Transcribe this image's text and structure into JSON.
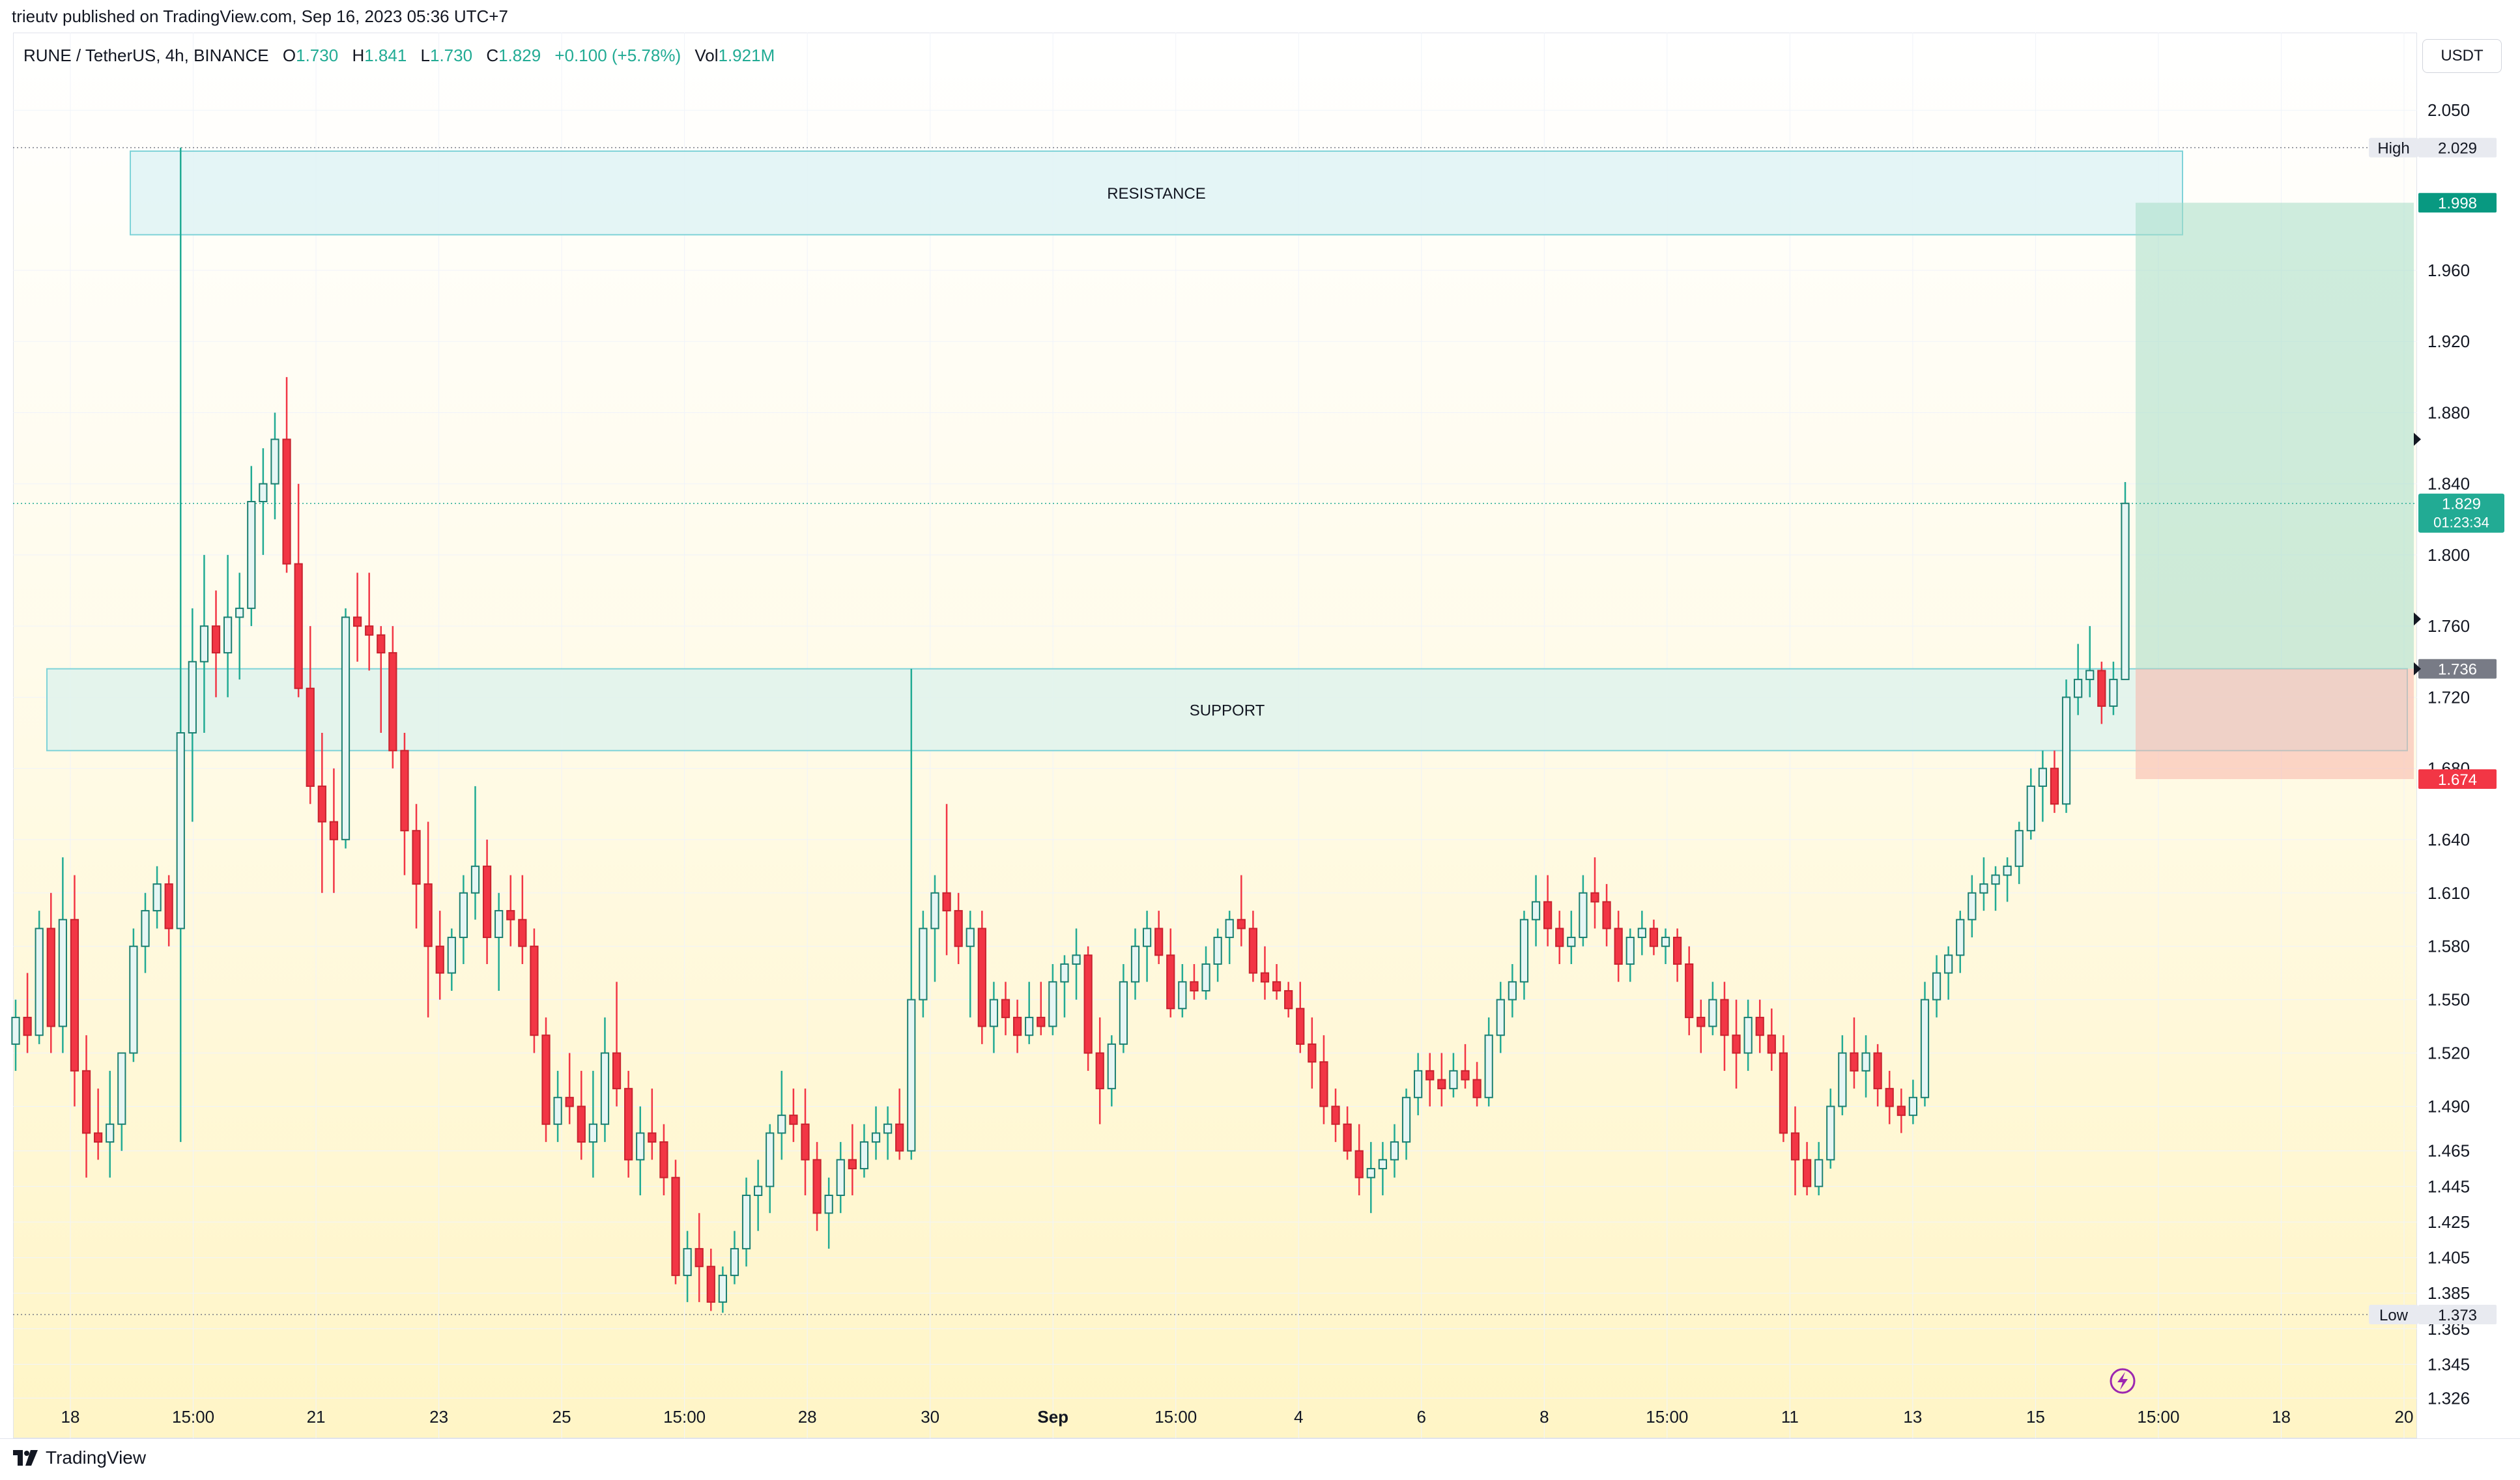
{
  "publisher": "trieutv published on TradingView.com, Sep 16, 2023 05:36 UTC+7",
  "legend": {
    "symbol": "RUNE / TetherUS, 4h, BINANCE",
    "o_label": "O",
    "o": "1.730",
    "h_label": "H",
    "h": "1.841",
    "l_label": "L",
    "l": "1.730",
    "c_label": "C",
    "c": "1.829",
    "change": "+0.100 (+5.78%)",
    "vol_label": "Vol",
    "vol": "1.921M"
  },
  "currency": "USDT",
  "brand": "TradingView",
  "colors": {
    "up": "#22ab94",
    "down": "#f23645",
    "up_fill": "#e6f6f4",
    "grid": "#f0f3fa"
  },
  "chart_data": {
    "type": "candlestick",
    "title": "RUNE / TetherUS, 4h, BINANCE",
    "ylabel": "USDT",
    "ylim": [
      1.31,
      2.09
    ],
    "y_ticks": [
      "2.050",
      "1.960",
      "1.920",
      "1.880",
      "1.840",
      "1.800",
      "1.760",
      "1.720",
      "1.680",
      "1.640",
      "1.610",
      "1.580",
      "1.550",
      "1.520",
      "1.490",
      "1.465",
      "1.445",
      "1.425",
      "1.405",
      "1.385",
      "1.365",
      "1.345",
      "1.326"
    ],
    "x_ticks": [
      "18",
      "15:00",
      "21",
      "23",
      "25",
      "15:00",
      "28",
      "30",
      "Sep",
      "15:00",
      "4",
      "6",
      "8",
      "15:00",
      "11",
      "13",
      "15",
      "15:00",
      "18",
      "20"
    ],
    "zones": [
      {
        "label": "RESISTANCE",
        "from": 1.98,
        "to": 2.027
      },
      {
        "label": "SUPPORT",
        "from": 1.69,
        "to": 1.736
      }
    ],
    "markers": [
      {
        "label": "High",
        "value": 2.029
      },
      {
        "label": "Low",
        "value": 1.373
      }
    ],
    "position": {
      "target": 1.998,
      "entry": 1.736,
      "stop": 1.674
    },
    "last_price": "1.829",
    "countdown": "01:23:34",
    "candles": [
      [
        1.525,
        1.55,
        1.51,
        1.54
      ],
      [
        1.54,
        1.565,
        1.52,
        1.53
      ],
      [
        1.53,
        1.6,
        1.525,
        1.59
      ],
      [
        1.59,
        1.61,
        1.52,
        1.535
      ],
      [
        1.535,
        1.63,
        1.52,
        1.595
      ],
      [
        1.595,
        1.62,
        1.49,
        1.51
      ],
      [
        1.51,
        1.53,
        1.45,
        1.475
      ],
      [
        1.475,
        1.5,
        1.46,
        1.47
      ],
      [
        1.47,
        1.51,
        1.45,
        1.48
      ],
      [
        1.48,
        1.52,
        1.465,
        1.52
      ],
      [
        1.52,
        1.59,
        1.515,
        1.58
      ],
      [
        1.58,
        1.61,
        1.565,
        1.6
      ],
      [
        1.6,
        1.625,
        1.59,
        1.615
      ],
      [
        1.615,
        1.62,
        1.58,
        1.59
      ],
      [
        1.59,
        2.029,
        1.47,
        1.7
      ],
      [
        1.7,
        1.77,
        1.65,
        1.74
      ],
      [
        1.74,
        1.8,
        1.7,
        1.76
      ],
      [
        1.76,
        1.78,
        1.72,
        1.745
      ],
      [
        1.745,
        1.8,
        1.72,
        1.765
      ],
      [
        1.765,
        1.79,
        1.73,
        1.77
      ],
      [
        1.77,
        1.85,
        1.76,
        1.83
      ],
      [
        1.83,
        1.86,
        1.8,
        1.84
      ],
      [
        1.84,
        1.88,
        1.82,
        1.865
      ],
      [
        1.865,
        1.9,
        1.79,
        1.795
      ],
      [
        1.795,
        1.84,
        1.72,
        1.725
      ],
      [
        1.725,
        1.76,
        1.66,
        1.67
      ],
      [
        1.67,
        1.7,
        1.61,
        1.65
      ],
      [
        1.65,
        1.68,
        1.61,
        1.64
      ],
      [
        1.64,
        1.77,
        1.635,
        1.765
      ],
      [
        1.765,
        1.79,
        1.74,
        1.76
      ],
      [
        1.76,
        1.79,
        1.735,
        1.755
      ],
      [
        1.755,
        1.76,
        1.7,
        1.745
      ],
      [
        1.745,
        1.76,
        1.68,
        1.69
      ],
      [
        1.69,
        1.7,
        1.62,
        1.645
      ],
      [
        1.645,
        1.66,
        1.59,
        1.615
      ],
      [
        1.615,
        1.65,
        1.54,
        1.58
      ],
      [
        1.58,
        1.6,
        1.55,
        1.565
      ],
      [
        1.565,
        1.59,
        1.555,
        1.585
      ],
      [
        1.585,
        1.62,
        1.57,
        1.61
      ],
      [
        1.61,
        1.67,
        1.595,
        1.625
      ],
      [
        1.625,
        1.64,
        1.57,
        1.585
      ],
      [
        1.585,
        1.61,
        1.555,
        1.6
      ],
      [
        1.6,
        1.62,
        1.58,
        1.595
      ],
      [
        1.595,
        1.62,
        1.57,
        1.58
      ],
      [
        1.58,
        1.59,
        1.52,
        1.53
      ],
      [
        1.53,
        1.54,
        1.47,
        1.48
      ],
      [
        1.48,
        1.51,
        1.47,
        1.495
      ],
      [
        1.495,
        1.52,
        1.48,
        1.49
      ],
      [
        1.49,
        1.51,
        1.46,
        1.47
      ],
      [
        1.47,
        1.51,
        1.45,
        1.48
      ],
      [
        1.48,
        1.54,
        1.47,
        1.52
      ],
      [
        1.52,
        1.56,
        1.49,
        1.5
      ],
      [
        1.5,
        1.51,
        1.45,
        1.46
      ],
      [
        1.46,
        1.49,
        1.44,
        1.475
      ],
      [
        1.475,
        1.5,
        1.46,
        1.47
      ],
      [
        1.47,
        1.48,
        1.44,
        1.45
      ],
      [
        1.45,
        1.46,
        1.39,
        1.395
      ],
      [
        1.395,
        1.42,
        1.38,
        1.41
      ],
      [
        1.41,
        1.43,
        1.38,
        1.4
      ],
      [
        1.4,
        1.41,
        1.375,
        1.38
      ],
      [
        1.38,
        1.4,
        1.374,
        1.395
      ],
      [
        1.395,
        1.42,
        1.39,
        1.41
      ],
      [
        1.41,
        1.45,
        1.4,
        1.44
      ],
      [
        1.44,
        1.46,
        1.42,
        1.445
      ],
      [
        1.445,
        1.48,
        1.43,
        1.475
      ],
      [
        1.475,
        1.51,
        1.46,
        1.485
      ],
      [
        1.485,
        1.5,
        1.47,
        1.48
      ],
      [
        1.48,
        1.5,
        1.44,
        1.46
      ],
      [
        1.46,
        1.47,
        1.42,
        1.43
      ],
      [
        1.43,
        1.45,
        1.41,
        1.44
      ],
      [
        1.44,
        1.47,
        1.43,
        1.46
      ],
      [
        1.46,
        1.48,
        1.44,
        1.455
      ],
      [
        1.455,
        1.48,
        1.45,
        1.47
      ],
      [
        1.47,
        1.49,
        1.46,
        1.475
      ],
      [
        1.475,
        1.49,
        1.46,
        1.48
      ],
      [
        1.48,
        1.5,
        1.46,
        1.465
      ],
      [
        1.465,
        1.736,
        1.46,
        1.55
      ],
      [
        1.55,
        1.6,
        1.54,
        1.59
      ],
      [
        1.59,
        1.62,
        1.56,
        1.61
      ],
      [
        1.61,
        1.66,
        1.575,
        1.6
      ],
      [
        1.6,
        1.61,
        1.57,
        1.58
      ],
      [
        1.58,
        1.6,
        1.54,
        1.59
      ],
      [
        1.59,
        1.6,
        1.525,
        1.535
      ],
      [
        1.535,
        1.56,
        1.52,
        1.55
      ],
      [
        1.55,
        1.56,
        1.53,
        1.54
      ],
      [
        1.54,
        1.55,
        1.52,
        1.53
      ],
      [
        1.53,
        1.56,
        1.525,
        1.54
      ],
      [
        1.54,
        1.56,
        1.53,
        1.535
      ],
      [
        1.535,
        1.57,
        1.53,
        1.56
      ],
      [
        1.56,
        1.575,
        1.54,
        1.57
      ],
      [
        1.57,
        1.59,
        1.55,
        1.575
      ],
      [
        1.575,
        1.58,
        1.51,
        1.52
      ],
      [
        1.52,
        1.54,
        1.48,
        1.5
      ],
      [
        1.5,
        1.53,
        1.49,
        1.525
      ],
      [
        1.525,
        1.57,
        1.52,
        1.56
      ],
      [
        1.56,
        1.59,
        1.55,
        1.58
      ],
      [
        1.58,
        1.6,
        1.56,
        1.59
      ],
      [
        1.59,
        1.6,
        1.57,
        1.575
      ],
      [
        1.575,
        1.59,
        1.54,
        1.545
      ],
      [
        1.545,
        1.57,
        1.54,
        1.56
      ],
      [
        1.56,
        1.57,
        1.55,
        1.555
      ],
      [
        1.555,
        1.58,
        1.55,
        1.57
      ],
      [
        1.57,
        1.59,
        1.56,
        1.585
      ],
      [
        1.585,
        1.6,
        1.57,
        1.595
      ],
      [
        1.595,
        1.62,
        1.58,
        1.59
      ],
      [
        1.59,
        1.6,
        1.56,
        1.565
      ],
      [
        1.565,
        1.58,
        1.55,
        1.56
      ],
      [
        1.56,
        1.57,
        1.55,
        1.555
      ],
      [
        1.555,
        1.56,
        1.54,
        1.545
      ],
      [
        1.545,
        1.56,
        1.52,
        1.525
      ],
      [
        1.525,
        1.54,
        1.5,
        1.515
      ],
      [
        1.515,
        1.53,
        1.48,
        1.49
      ],
      [
        1.49,
        1.5,
        1.47,
        1.48
      ],
      [
        1.48,
        1.49,
        1.46,
        1.465
      ],
      [
        1.465,
        1.48,
        1.44,
        1.45
      ],
      [
        1.45,
        1.47,
        1.43,
        1.455
      ],
      [
        1.455,
        1.47,
        1.44,
        1.46
      ],
      [
        1.46,
        1.48,
        1.45,
        1.47
      ],
      [
        1.47,
        1.5,
        1.46,
        1.495
      ],
      [
        1.495,
        1.52,
        1.485,
        1.51
      ],
      [
        1.51,
        1.52,
        1.49,
        1.505
      ],
      [
        1.505,
        1.52,
        1.49,
        1.5
      ],
      [
        1.5,
        1.52,
        1.495,
        1.51
      ],
      [
        1.51,
        1.525,
        1.5,
        1.505
      ],
      [
        1.505,
        1.515,
        1.49,
        1.495
      ],
      [
        1.495,
        1.54,
        1.49,
        1.53
      ],
      [
        1.53,
        1.56,
        1.52,
        1.55
      ],
      [
        1.55,
        1.57,
        1.54,
        1.56
      ],
      [
        1.56,
        1.6,
        1.55,
        1.595
      ],
      [
        1.595,
        1.62,
        1.58,
        1.605
      ],
      [
        1.605,
        1.62,
        1.58,
        1.59
      ],
      [
        1.59,
        1.6,
        1.57,
        1.58
      ],
      [
        1.58,
        1.6,
        1.57,
        1.585
      ],
      [
        1.585,
        1.62,
        1.58,
        1.61
      ],
      [
        1.61,
        1.63,
        1.59,
        1.605
      ],
      [
        1.605,
        1.615,
        1.58,
        1.59
      ],
      [
        1.59,
        1.6,
        1.56,
        1.57
      ],
      [
        1.57,
        1.59,
        1.56,
        1.585
      ],
      [
        1.585,
        1.6,
        1.575,
        1.59
      ],
      [
        1.59,
        1.595,
        1.575,
        1.58
      ],
      [
        1.58,
        1.59,
        1.57,
        1.585
      ],
      [
        1.585,
        1.59,
        1.56,
        1.57
      ],
      [
        1.57,
        1.58,
        1.53,
        1.54
      ],
      [
        1.54,
        1.55,
        1.52,
        1.535
      ],
      [
        1.535,
        1.56,
        1.53,
        1.55
      ],
      [
        1.55,
        1.56,
        1.51,
        1.53
      ],
      [
        1.53,
        1.55,
        1.5,
        1.52
      ],
      [
        1.52,
        1.55,
        1.51,
        1.54
      ],
      [
        1.54,
        1.55,
        1.52,
        1.53
      ],
      [
        1.53,
        1.545,
        1.51,
        1.52
      ],
      [
        1.52,
        1.53,
        1.47,
        1.475
      ],
      [
        1.475,
        1.49,
        1.44,
        1.46
      ],
      [
        1.46,
        1.47,
        1.44,
        1.445
      ],
      [
        1.445,
        1.47,
        1.44,
        1.46
      ],
      [
        1.46,
        1.5,
        1.455,
        1.49
      ],
      [
        1.49,
        1.53,
        1.485,
        1.52
      ],
      [
        1.52,
        1.54,
        1.5,
        1.51
      ],
      [
        1.51,
        1.53,
        1.495,
        1.52
      ],
      [
        1.52,
        1.525,
        1.49,
        1.5
      ],
      [
        1.5,
        1.51,
        1.48,
        1.49
      ],
      [
        1.49,
        1.5,
        1.475,
        1.485
      ],
      [
        1.485,
        1.505,
        1.48,
        1.495
      ],
      [
        1.495,
        1.56,
        1.49,
        1.55
      ],
      [
        1.55,
        1.575,
        1.54,
        1.565
      ],
      [
        1.565,
        1.58,
        1.55,
        1.575
      ],
      [
        1.575,
        1.6,
        1.565,
        1.595
      ],
      [
        1.595,
        1.62,
        1.585,
        1.61
      ],
      [
        1.61,
        1.63,
        1.6,
        1.615
      ],
      [
        1.615,
        1.625,
        1.6,
        1.62
      ],
      [
        1.62,
        1.63,
        1.605,
        1.625
      ],
      [
        1.625,
        1.65,
        1.615,
        1.645
      ],
      [
        1.645,
        1.68,
        1.64,
        1.67
      ],
      [
        1.67,
        1.69,
        1.65,
        1.68
      ],
      [
        1.68,
        1.69,
        1.655,
        1.66
      ],
      [
        1.66,
        1.73,
        1.655,
        1.72
      ],
      [
        1.72,
        1.75,
        1.71,
        1.73
      ],
      [
        1.73,
        1.76,
        1.72,
        1.735
      ],
      [
        1.735,
        1.74,
        1.705,
        1.715
      ],
      [
        1.715,
        1.74,
        1.71,
        1.73
      ],
      [
        1.73,
        1.841,
        1.73,
        1.829
      ]
    ]
  }
}
